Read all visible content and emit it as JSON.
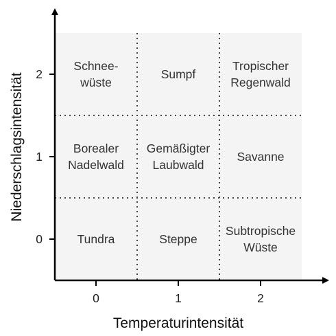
{
  "diagram": {
    "x_axis_title": "Temperaturintensität",
    "y_axis_title": "Niederschlagsintensität",
    "x_ticks": [
      "0",
      "1",
      "2"
    ],
    "y_ticks": [
      "0",
      "1",
      "2"
    ],
    "colors": {
      "grid_background": "#f4f4f4",
      "grid_lines": "#444444",
      "axes": "#000000",
      "cell_text": "#333333"
    },
    "cells": [
      {
        "name": "cell-schneewueste",
        "col": 0,
        "row": 2,
        "lines": [
          "Schnee-",
          "wüste"
        ]
      },
      {
        "name": "cell-sumpf",
        "col": 1,
        "row": 2,
        "lines": [
          "Sumpf"
        ]
      },
      {
        "name": "cell-tropischer-regenwald",
        "col": 2,
        "row": 2,
        "lines": [
          "Tropischer",
          "Regenwald"
        ]
      },
      {
        "name": "cell-borealer-nadelwald",
        "col": 0,
        "row": 1,
        "lines": [
          "Borealer",
          "Nadelwald"
        ]
      },
      {
        "name": "cell-gemaessigter-laubwald",
        "col": 1,
        "row": 1,
        "lines": [
          "Gemäßigter",
          "Laubwald"
        ]
      },
      {
        "name": "cell-savanne",
        "col": 2,
        "row": 1,
        "lines": [
          "Savanne"
        ]
      },
      {
        "name": "cell-tundra",
        "col": 0,
        "row": 0,
        "lines": [
          "Tundra"
        ]
      },
      {
        "name": "cell-steppe",
        "col": 1,
        "row": 0,
        "lines": [
          "Steppe"
        ]
      },
      {
        "name": "cell-subtropische-wueste",
        "col": 2,
        "row": 0,
        "lines": [
          "Subtropische",
          "Wüste"
        ]
      }
    ]
  }
}
